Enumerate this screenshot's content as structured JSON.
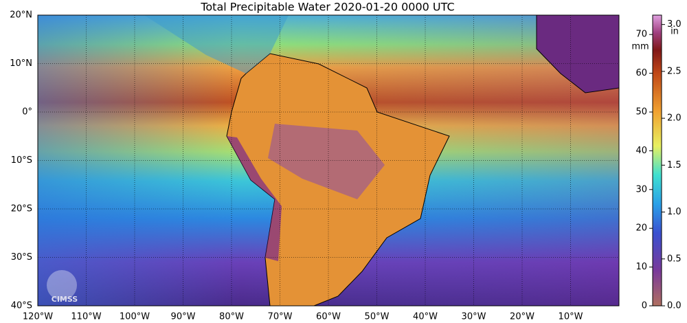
{
  "title": "Total Precipitable Water  2020-01-20 0000 UTC",
  "lat_ticks": [
    {
      "value": 20,
      "label": "20°N"
    },
    {
      "value": 10,
      "label": "10°N"
    },
    {
      "value": 0,
      "label": "0°"
    },
    {
      "value": -10,
      "label": "10°S"
    },
    {
      "value": -20,
      "label": "20°S"
    },
    {
      "value": -30,
      "label": "30°S"
    },
    {
      "value": -40,
      "label": "40°S"
    }
  ],
  "lon_ticks": [
    {
      "value": -120,
      "label": "120°W"
    },
    {
      "value": -110,
      "label": "110°W"
    },
    {
      "value": -100,
      "label": "100°W"
    },
    {
      "value": -90,
      "label": "90°W"
    },
    {
      "value": -80,
      "label": "80°W"
    },
    {
      "value": -70,
      "label": "70°W"
    },
    {
      "value": -60,
      "label": "60°W"
    },
    {
      "value": -50,
      "label": "50°W"
    },
    {
      "value": -40,
      "label": "40°W"
    },
    {
      "value": -30,
      "label": "30°W"
    },
    {
      "value": -20,
      "label": "20°W"
    },
    {
      "value": -10,
      "label": "10°W"
    }
  ],
  "lat_lim": [
    20,
    -40
  ],
  "lon_lim": [
    -120,
    0
  ],
  "colorbar": {
    "mm_label": "mm",
    "in_label": "in",
    "mm_lim": [
      0,
      75
    ],
    "mm_ticks": [
      0,
      10,
      20,
      30,
      40,
      50,
      60,
      70
    ],
    "in_lim": [
      0,
      3.1
    ],
    "in_ticks": [
      {
        "value": 0,
        "label": "0.0"
      },
      {
        "value": 0.5,
        "label": "0.5"
      },
      {
        "value": 1,
        "label": "1.0"
      },
      {
        "value": 1.5,
        "label": "1.5"
      },
      {
        "value": 2,
        "label": "2.0"
      },
      {
        "value": 2.5,
        "label": "2.5"
      },
      {
        "value": 3,
        "label": "3.0"
      }
    ]
  },
  "logo": "CIMSS"
}
